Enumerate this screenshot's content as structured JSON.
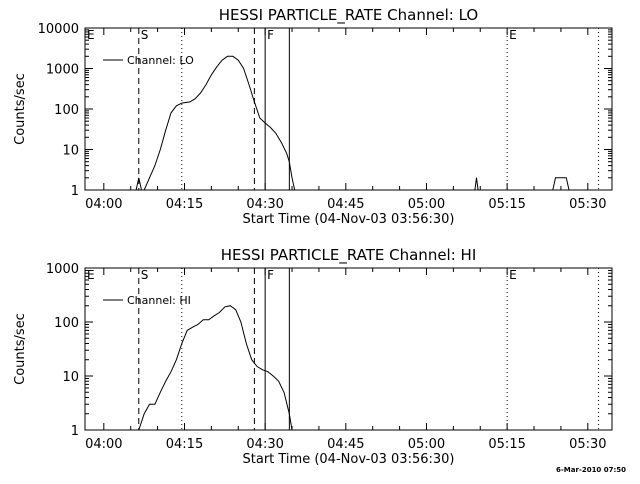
{
  "chart_data": [
    {
      "type": "line",
      "title": "HESSI PARTICLE_RATE Channel: LO",
      "xlabel": "Start Time (04-Nov-03 03:56:30)",
      "ylabel": "Counts/sec",
      "yscale": "log",
      "ylim": [
        1,
        10000
      ],
      "x_unit": "minutes since 04:00",
      "xlim": [
        -3.5,
        94.5
      ],
      "x_ticks": [
        0,
        15,
        30,
        45,
        60,
        75,
        90
      ],
      "x_tick_labels": [
        "04:00",
        "04:15",
        "04:30",
        "04:45",
        "05:00",
        "05:15",
        "05:30"
      ],
      "y_ticks": [
        1,
        10,
        100,
        1000,
        10000
      ],
      "y_tick_labels": [
        "1",
        "10",
        "100",
        "1000",
        "10000"
      ],
      "legend": {
        "label": "Channel: LO",
        "position": "top-left"
      },
      "markers": [
        {
          "label": "E",
          "x": -3.5,
          "style": "dotted"
        },
        {
          "label": "S",
          "x": 6.5,
          "style": "dashed"
        },
        {
          "label": "",
          "x": 14.5,
          "style": "dotted"
        },
        {
          "label": "",
          "x": 28.0,
          "style": "dashed"
        },
        {
          "label": "F",
          "x": 30.0,
          "style": "solid"
        },
        {
          "label": "",
          "x": 34.5,
          "style": "solid"
        },
        {
          "label": "E",
          "x": 75.0,
          "style": "dotted"
        },
        {
          "label": "",
          "x": 92.0,
          "style": "dotted"
        }
      ],
      "series": [
        {
          "name": "Channel: LO",
          "segments": [
            [
              [
                6.0,
                1
              ],
              [
                6.5,
                2
              ],
              [
                7.0,
                1
              ]
            ],
            [
              [
                7.5,
                1
              ],
              [
                8.5,
                2
              ],
              [
                9.5,
                4
              ],
              [
                10.5,
                10
              ],
              [
                11.5,
                30
              ],
              [
                12.5,
                80
              ],
              [
                13.5,
                120
              ],
              [
                14.5,
                140
              ],
              [
                16.0,
                150
              ],
              [
                17.0,
                180
              ],
              [
                18.0,
                250
              ],
              [
                19.0,
                400
              ],
              [
                20.0,
                700
              ],
              [
                21.0,
                1100
              ],
              [
                22.0,
                1600
              ],
              [
                23.0,
                2000
              ],
              [
                24.0,
                2000
              ],
              [
                25.0,
                1600
              ],
              [
                26.0,
                1000
              ],
              [
                27.0,
                400
              ],
              [
                28.0,
                150
              ],
              [
                29.0,
                60
              ],
              [
                30.0,
                45
              ],
              [
                31.0,
                35
              ],
              [
                32.0,
                25
              ],
              [
                33.0,
                15
              ],
              [
                34.0,
                8
              ],
              [
                34.5,
                5
              ],
              [
                35.0,
                2
              ],
              [
                35.5,
                1
              ]
            ],
            [
              [
                69.0,
                1
              ],
              [
                69.3,
                2
              ],
              [
                69.6,
                1
              ]
            ],
            [
              [
                83.5,
                1
              ],
              [
                84.0,
                2
              ],
              [
                86.0,
                2
              ],
              [
                86.5,
                1
              ]
            ]
          ]
        }
      ]
    },
    {
      "type": "line",
      "title": "HESSI PARTICLE_RATE Channel: HI",
      "xlabel": "Start Time (04-Nov-03 03:56:30)",
      "ylabel": "Counts/sec",
      "yscale": "log",
      "ylim": [
        1,
        1000
      ],
      "x_unit": "minutes since 04:00",
      "xlim": [
        -3.5,
        94.5
      ],
      "x_ticks": [
        0,
        15,
        30,
        45,
        60,
        75,
        90
      ],
      "x_tick_labels": [
        "04:00",
        "04:15",
        "04:30",
        "04:45",
        "05:00",
        "05:15",
        "05:30"
      ],
      "y_ticks": [
        1,
        10,
        100,
        1000
      ],
      "y_tick_labels": [
        "1",
        "10",
        "100",
        "1000"
      ],
      "legend": {
        "label": "Channel: HI",
        "position": "top-left"
      },
      "markers": [
        {
          "label": "E",
          "x": -3.5,
          "style": "dotted"
        },
        {
          "label": "S",
          "x": 6.5,
          "style": "dashed"
        },
        {
          "label": "",
          "x": 14.5,
          "style": "dotted"
        },
        {
          "label": "",
          "x": 28.0,
          "style": "dashed"
        },
        {
          "label": "F",
          "x": 30.0,
          "style": "solid"
        },
        {
          "label": "",
          "x": 34.5,
          "style": "solid"
        },
        {
          "label": "E",
          "x": 75.0,
          "style": "dotted"
        },
        {
          "label": "",
          "x": 92.0,
          "style": "dotted"
        }
      ],
      "series": [
        {
          "name": "Channel: HI",
          "segments": [
            [
              [
                6.5,
                1
              ],
              [
                7.5,
                2
              ],
              [
                8.5,
                3
              ],
              [
                9.5,
                3
              ],
              [
                10.5,
                5
              ],
              [
                11.5,
                8
              ],
              [
                12.5,
                12
              ],
              [
                13.5,
                20
              ],
              [
                14.5,
                40
              ],
              [
                15.5,
                70
              ],
              [
                16.5,
                80
              ],
              [
                17.5,
                90
              ],
              [
                18.5,
                110
              ],
              [
                19.5,
                110
              ],
              [
                20.5,
                130
              ],
              [
                21.5,
                150
              ],
              [
                22.5,
                190
              ],
              [
                23.5,
                200
              ],
              [
                24.5,
                170
              ],
              [
                25.5,
                100
              ],
              [
                26.5,
                40
              ],
              [
                27.5,
                20
              ],
              [
                28.5,
                15
              ],
              [
                29.5,
                13
              ],
              [
                30.5,
                12
              ],
              [
                31.5,
                10
              ],
              [
                32.5,
                8
              ],
              [
                33.5,
                5
              ],
              [
                34.5,
                2
              ],
              [
                35.0,
                1
              ]
            ]
          ]
        }
      ]
    }
  ],
  "footer": {
    "timestamp": "6-Mar-2010 07:50"
  }
}
